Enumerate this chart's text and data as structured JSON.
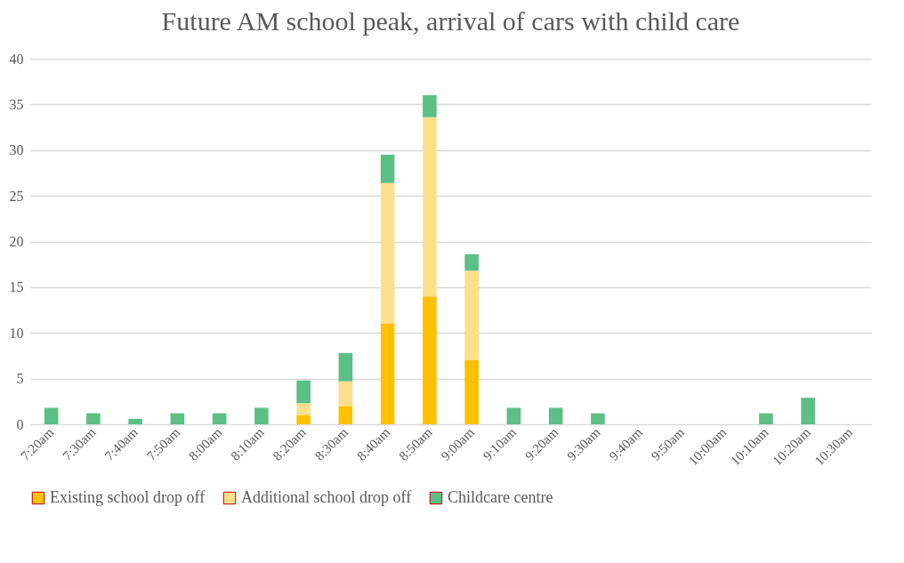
{
  "chart_data": {
    "type": "bar",
    "title": "Future AM school peak, arrival of cars with child care",
    "stacked": true,
    "categories": [
      "7:20am",
      "7:30am",
      "7:40am",
      "7:50am",
      "8:00am",
      "8:10am",
      "8:20am",
      "8:30am",
      "8:40am",
      "8:50am",
      "9:00am",
      "9:10am",
      "9:20am",
      "9:30am",
      "9:40am",
      "9:50am",
      "10:00am",
      "10:10am",
      "10:20am",
      "10:30am"
    ],
    "series": [
      {
        "name": "Existing school drop off",
        "color": "#ffc000",
        "values": [
          0,
          0,
          0,
          0,
          0,
          0,
          1,
          2,
          11,
          14,
          7,
          0,
          0,
          0,
          0,
          0,
          0,
          0,
          0,
          0
        ]
      },
      {
        "name": "Additional school drop off",
        "color": "#ffe08a",
        "values": [
          0,
          0,
          0,
          0,
          0,
          0,
          1.3,
          2.7,
          15.4,
          19.6,
          9.8,
          0,
          0,
          0,
          0,
          0,
          0,
          0,
          0,
          0
        ]
      },
      {
        "name": "Childcare centre",
        "color": "#5cbf85",
        "values": [
          1.8,
          1.2,
          0.6,
          1.2,
          1.2,
          1.8,
          2.5,
          3.1,
          3.1,
          2.4,
          1.8,
          1.8,
          1.8,
          1.2,
          0,
          0,
          0,
          1.2,
          2.9,
          0
        ]
      }
    ],
    "ylim": [
      0,
      40
    ],
    "yticks": [
      0,
      5,
      10,
      15,
      20,
      25,
      30,
      35,
      40
    ],
    "grid": "y",
    "legend": "bottom"
  }
}
